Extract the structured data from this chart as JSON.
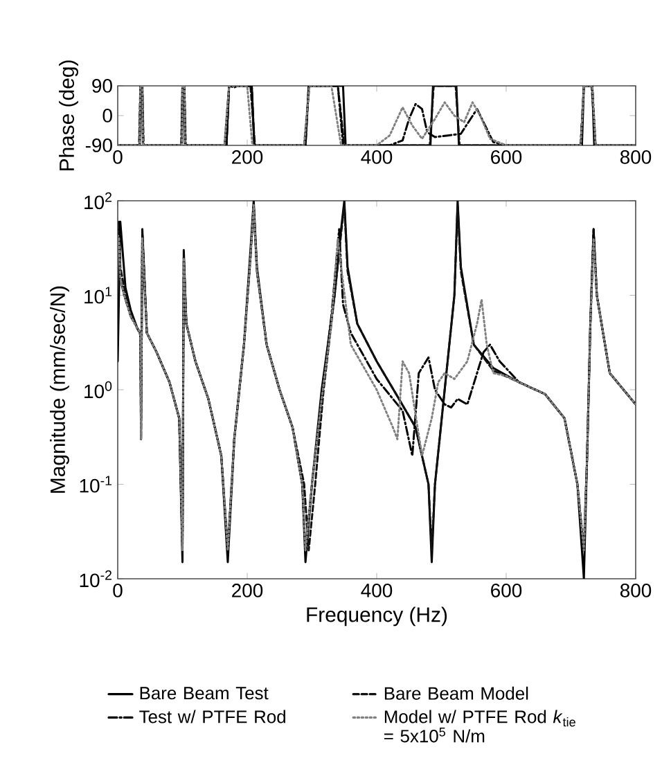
{
  "chart_data": [
    {
      "type": "line",
      "ylabel": "Phase (deg)",
      "xlim": [
        0,
        800
      ],
      "ylim": [
        -90,
        90
      ],
      "xticks": [
        0,
        200,
        400,
        600,
        800
      ],
      "yticks": [
        -90,
        0,
        90
      ],
      "series": [
        {
          "color": "#000000",
          "line_style": "solid",
          "x": [
            0,
            34,
            35,
            38,
            39,
            99,
            100,
            103,
            104,
            168,
            172,
            207,
            211,
            290,
            295,
            348,
            352,
            483,
            487,
            523,
            527,
            717,
            720,
            733,
            736,
            800
          ],
          "values": [
            -90,
            -90,
            90,
            90,
            -90,
            -90,
            90,
            90,
            -90,
            -90,
            90,
            90,
            -90,
            -90,
            90,
            90,
            -90,
            -90,
            90,
            90,
            -90,
            -90,
            90,
            90,
            -90,
            -90
          ]
        },
        {
          "color": "#111111",
          "line_style": "dashed",
          "x": [
            0,
            33,
            35,
            38,
            40,
            98,
            100,
            103,
            105,
            165,
            172,
            180,
            185,
            205,
            212,
            288,
            296,
            340,
            350,
            482,
            488,
            522,
            528,
            715,
            720,
            732,
            738,
            800
          ],
          "values": [
            -90,
            -90,
            90,
            90,
            -90,
            -90,
            90,
            90,
            -90,
            -90,
            90,
            85,
            90,
            90,
            -90,
            -90,
            90,
            90,
            -90,
            -90,
            90,
            90,
            -90,
            -90,
            90,
            90,
            -90,
            -90
          ]
        },
        {
          "color": "#000000",
          "line_style": "dashdot",
          "x": [
            0,
            34,
            35,
            38,
            39,
            99,
            100,
            103,
            104,
            168,
            172,
            207,
            211,
            290,
            295,
            340,
            348,
            420,
            440,
            450,
            460,
            470,
            478,
            490,
            510,
            530,
            545,
            555,
            565,
            580,
            600,
            715,
            720,
            733,
            738,
            800
          ],
          "values": [
            -90,
            -90,
            90,
            90,
            -90,
            -90,
            90,
            90,
            -90,
            -90,
            90,
            90,
            -90,
            -90,
            90,
            90,
            -90,
            -90,
            -75,
            -10,
            35,
            20,
            -50,
            -65,
            -60,
            -55,
            -10,
            20,
            -20,
            -80,
            -90,
            -90,
            90,
            90,
            -90,
            -90
          ]
        },
        {
          "color": "#808080",
          "line_style": "dotted",
          "x": [
            0,
            34,
            35,
            38,
            39,
            99,
            100,
            103,
            104,
            165,
            172,
            200,
            208,
            288,
            296,
            330,
            345,
            400,
            420,
            440,
            455,
            470,
            490,
            505,
            520,
            535,
            548,
            560,
            575,
            600,
            715,
            720,
            733,
            738,
            800
          ],
          "values": [
            -90,
            -90,
            90,
            90,
            -90,
            -90,
            90,
            90,
            -90,
            -90,
            90,
            90,
            -90,
            -90,
            90,
            90,
            -90,
            -90,
            -60,
            25,
            -30,
            -70,
            -10,
            40,
            0,
            -20,
            40,
            0,
            -70,
            -90,
            -90,
            90,
            90,
            -90,
            -90
          ]
        }
      ]
    },
    {
      "type": "line",
      "xlabel": "Frequency (Hz)",
      "ylabel": "Magnitude (mm/sec/N)",
      "xlim": [
        0,
        800
      ],
      "ylim": [
        0.01,
        100
      ],
      "log": "y",
      "legend": "bottom",
      "xticks": [
        0,
        200,
        400,
        600,
        800
      ],
      "yticks": [
        {
          "value": 0.01,
          "label": "10$^{-2}$"
        },
        {
          "value": 0.1,
          "label": "10$^{-1}$"
        },
        {
          "value": 1,
          "label": "10$^{0}$"
        },
        {
          "value": 10,
          "label": "10$^{1}$"
        },
        {
          "value": 100,
          "label": "10$^{2}$"
        }
      ],
      "series": [
        {
          "name": "Bare Beam Test",
          "color": "#000000",
          "line_style": "solid",
          "x": [
            0,
            4,
            12,
            20,
            30,
            35,
            36,
            38,
            45,
            60,
            80,
            95,
            100,
            102,
            106,
            120,
            140,
            160,
            170,
            180,
            195,
            205,
            210,
            215,
            230,
            250,
            270,
            285,
            290,
            300,
            315,
            335,
            345,
            350,
            355,
            370,
            400,
            430,
            460,
            480,
            485,
            490,
            505,
            520,
            525,
            530,
            550,
            580,
            620,
            660,
            690,
            710,
            720,
            725,
            730,
            735,
            740,
            760,
            800
          ],
          "values": [
            2,
            60,
            12,
            7,
            4.5,
            4,
            0.3,
            50,
            4,
            2.5,
            1.2,
            0.5,
            0.015,
            30,
            5,
            2,
            0.8,
            0.2,
            0.015,
            0.3,
            3,
            30,
            100,
            20,
            3,
            1,
            0.4,
            0.1,
            0.015,
            0.1,
            1,
            10,
            50,
            100,
            20,
            5,
            2,
            0.9,
            0.4,
            0.1,
            0.015,
            0.1,
            1,
            10,
            100,
            20,
            3,
            1.7,
            1.2,
            0.9,
            0.5,
            0.1,
            0.01,
            0.2,
            5,
            50,
            10,
            1.5,
            0.7
          ]
        },
        {
          "name": "Bare Beam Model",
          "color": "#111111",
          "line_style": "dashed",
          "x": [
            2,
            4,
            10,
            20,
            30,
            35,
            36,
            38,
            45,
            60,
            80,
            95,
            100,
            102,
            106,
            120,
            140,
            160,
            170,
            180,
            195,
            205,
            210,
            215,
            230,
            250,
            270,
            288,
            295,
            305,
            318,
            335,
            345,
            350,
            355,
            370,
            400,
            430,
            460,
            480,
            485,
            490,
            505,
            520,
            525,
            530,
            550,
            580,
            620,
            660,
            690,
            710,
            720,
            725,
            730,
            735,
            740,
            760,
            800
          ],
          "values": [
            50,
            20,
            12,
            6.5,
            4.5,
            3.8,
            0.3,
            45,
            4,
            2.5,
            1.2,
            0.5,
            0.02,
            25,
            5,
            2,
            0.8,
            0.2,
            0.02,
            0.3,
            3,
            25,
            90,
            18,
            3,
            1,
            0.4,
            0.1,
            0.02,
            0.1,
            1,
            10,
            45,
            90,
            18,
            5,
            2,
            0.9,
            0.4,
            0.1,
            0.02,
            0.1,
            1,
            10,
            90,
            18,
            3,
            1.6,
            1.2,
            0.9,
            0.5,
            0.1,
            0.02,
            0.2,
            5,
            45,
            10,
            1.5,
            0.7
          ]
        },
        {
          "name": "Test w/ PTFE Rod",
          "color": "#000000",
          "line_style": "dashdot",
          "x": [
            2,
            4,
            10,
            20,
            30,
            35,
            36,
            38,
            45,
            60,
            80,
            95,
            100,
            102,
            106,
            120,
            140,
            160,
            170,
            180,
            195,
            205,
            210,
            215,
            230,
            250,
            270,
            285,
            290,
            300,
            315,
            330,
            342,
            348,
            360,
            400,
            440,
            455,
            465,
            480,
            490,
            505,
            515,
            525,
            540,
            555,
            565,
            575,
            590,
            620,
            660,
            690,
            710,
            720,
            725,
            730,
            735,
            740,
            760,
            800
          ],
          "values": [
            60,
            15,
            10,
            6,
            4.5,
            4,
            0.5,
            45,
            4,
            2.5,
            1.2,
            0.5,
            0.02,
            25,
            5,
            2,
            0.8,
            0.2,
            0.02,
            0.3,
            3,
            25,
            90,
            18,
            3,
            1,
            0.4,
            0.1,
            0.02,
            0.1,
            0.8,
            6,
            50,
            8,
            4,
            1.3,
            0.6,
            0.2,
            1.5,
            2.2,
            1,
            0.7,
            0.65,
            0.8,
            0.7,
            1.5,
            2.5,
            3,
            2,
            1.2,
            0.9,
            0.5,
            0.1,
            0.02,
            0.2,
            5,
            50,
            10,
            1.5,
            0.7
          ]
        },
        {
          "name": "Model w/ PTFE Rod *k*$_{tie}$ = 5x10$^{5}$ N/m",
          "color": "#808080",
          "line_style": "dotted",
          "x": [
            2,
            4,
            10,
            20,
            30,
            35,
            36,
            38,
            45,
            60,
            80,
            95,
            100,
            102,
            106,
            120,
            140,
            160,
            170,
            180,
            195,
            205,
            210,
            215,
            230,
            250,
            270,
            285,
            290,
            300,
            315,
            330,
            340,
            345,
            360,
            400,
            425,
            432,
            440,
            450,
            470,
            485,
            495,
            505,
            520,
            540,
            555,
            562,
            570,
            580,
            600,
            620,
            660,
            690,
            710,
            720,
            725,
            730,
            735,
            740,
            760,
            800
          ],
          "values": [
            40,
            15,
            10,
            6,
            4.5,
            4,
            0.3,
            40,
            4,
            2.5,
            1.2,
            0.5,
            0.02,
            25,
            5,
            2,
            0.8,
            0.2,
            0.02,
            0.3,
            3,
            25,
            90,
            18,
            3,
            1,
            0.4,
            0.1,
            0.02,
            0.1,
            0.8,
            5,
            40,
            20,
            3,
            1,
            0.4,
            0.3,
            2,
            1.5,
            0.2,
            0.5,
            1.2,
            1.5,
            1.3,
            2,
            5,
            9,
            3,
            1.5,
            1.4,
            1.2,
            0.9,
            0.5,
            0.1,
            0.02,
            0.2,
            5,
            40,
            10,
            1.5,
            0.7
          ]
        }
      ]
    }
  ]
}
